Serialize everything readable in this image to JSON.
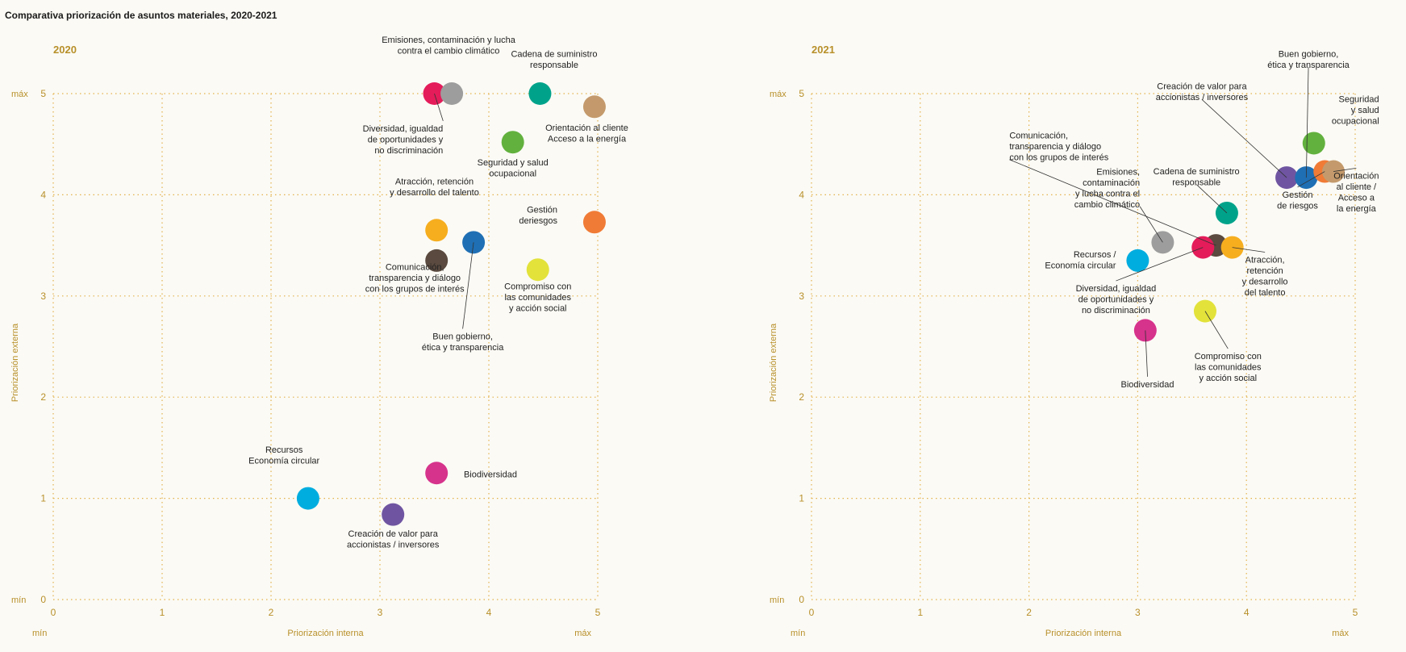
{
  "title": "Comparativa priorización de asuntos materiales, 2020-2021",
  "chart_data": [
    {
      "type": "scatter",
      "title": "2020",
      "xlabel": "Priorización interna",
      "ylabel": "Priorización externa",
      "xlim": [
        0,
        5
      ],
      "ylim": [
        0,
        5
      ],
      "x_ticks": [
        "0",
        "1",
        "2",
        "3",
        "4",
        "5"
      ],
      "y_ticks": [
        "0",
        "1",
        "2",
        "3",
        "4",
        "5"
      ],
      "x_min_label": "mín",
      "x_max_label": "máx",
      "y_min_label": "mín",
      "y_max_label": "máx",
      "grid": true,
      "points": [
        {
          "x": 3.5,
          "y": 5.0,
          "color": "#e41c5a",
          "label": [
            "Diversidad, igualdad",
            "de oportunidades y",
            "no discriminación"
          ],
          "label_anchor": "end",
          "label_dx": 0.08,
          "label_dy": -0.45,
          "leader": true
        },
        {
          "x": 3.66,
          "y": 5.0,
          "color": "#9d9d9d",
          "label": [
            "Emisiones, contaminación y lucha",
            "contra el cambio climático"
          ],
          "label_anchor": "middle",
          "label_dx": -0.03,
          "label_dy": 0.48,
          "leader": false
        },
        {
          "x": 4.47,
          "y": 5.0,
          "color": "#00a38a",
          "label": [
            "Cadena de suministro",
            "responsable"
          ],
          "label_anchor": "middle",
          "label_dx": 0.13,
          "label_dy": 0.34,
          "leader": false
        },
        {
          "x": 4.97,
          "y": 4.87,
          "color": "#c49a6c",
          "label": [
            "Orientación al cliente",
            "Acceso a la energía"
          ],
          "label_anchor": "middle",
          "label_dx": -0.07,
          "label_dy": -0.26,
          "leader": false
        },
        {
          "x": 4.22,
          "y": 4.52,
          "color": "#62b13e",
          "label": [
            "Seguridad y salud",
            "ocupacional"
          ],
          "label_anchor": "middle",
          "label_dx": 0.0,
          "label_dy": -0.25,
          "leader": false
        },
        {
          "x": 3.52,
          "y": 3.65,
          "color": "#f6ae1f",
          "label": [
            "Atracción, retención",
            "y desarrollo del talento"
          ],
          "label_anchor": "middle",
          "label_dx": -0.02,
          "label_dy": 0.43,
          "leader": false
        },
        {
          "x": 3.86,
          "y": 3.53,
          "color": "#1f6fb4",
          "label": [
            "Buen gobierno,",
            "ética y transparencia"
          ],
          "label_anchor": "middle",
          "label_dx": -0.1,
          "label_dy": -0.98,
          "leader": true
        },
        {
          "x": 3.52,
          "y": 3.35,
          "color": "#5a4a3f",
          "label": [
            "Comunicación,",
            "transparencia y diálogo",
            "con los grupos de interés"
          ],
          "label_anchor": "middle",
          "label_dx": -0.2,
          "label_dy": -0.17,
          "leader": false
        },
        {
          "x": 4.97,
          "y": 3.73,
          "color": "#f07b36",
          "label": [
            "Gestión",
            "deriesgos"
          ],
          "label_anchor": "end",
          "label_dx": -0.34,
          "label_dy": 0.07,
          "leader": false
        },
        {
          "x": 4.45,
          "y": 3.26,
          "color": "#e2e23b",
          "label": [
            "Compromiso con",
            "las comunidades",
            "y acción social"
          ],
          "label_anchor": "middle",
          "label_dx": 0.0,
          "label_dy": -0.27,
          "leader": false
        },
        {
          "x": 2.34,
          "y": 1.0,
          "color": "#00addf",
          "label": [
            "Recursos",
            "Economía circular"
          ],
          "label_anchor": "middle",
          "label_dx": -0.22,
          "label_dy": 0.43,
          "leader": false
        },
        {
          "x": 3.12,
          "y": 0.84,
          "color": "#6f55a1",
          "label": [
            "Creación de valor para",
            "accionistas / inversores"
          ],
          "label_anchor": "middle",
          "label_dx": 0.0,
          "label_dy": -0.24,
          "leader": false
        },
        {
          "x": 3.52,
          "y": 1.25,
          "color": "#d6338c",
          "label": [
            "Biodiversidad"
          ],
          "label_anchor": "start",
          "label_dx": 0.25,
          "label_dy": -0.01,
          "leader": false
        }
      ]
    },
    {
      "type": "scatter",
      "title": "2021",
      "xlabel": "Priorización interna",
      "ylabel": "Priorización externa",
      "xlim": [
        0,
        5
      ],
      "ylim": [
        0,
        5
      ],
      "x_ticks": [
        "0",
        "1",
        "2",
        "3",
        "4",
        "5"
      ],
      "y_ticks": [
        "0",
        "1",
        "2",
        "3",
        "4",
        "5"
      ],
      "x_min_label": "mín",
      "x_max_label": "máx",
      "y_min_label": "mín",
      "y_max_label": "máx",
      "grid": true,
      "points": [
        {
          "x": 4.37,
          "y": 4.17,
          "color": "#6f55a1",
          "label": [
            "Creación de valor para",
            "accionistas / inversores"
          ],
          "label_anchor": "middle",
          "label_dx": -0.78,
          "label_dy": 0.85,
          "leader": true
        },
        {
          "x": 4.55,
          "y": 4.17,
          "color": "#1f6fb4",
          "label": [
            "Buen gobierno,",
            "ética y transparencia"
          ],
          "label_anchor": "middle",
          "label_dx": 0.02,
          "label_dy": 1.17,
          "leader": true
        },
        {
          "x": 4.62,
          "y": 4.51,
          "color": "#62b13e",
          "label": [
            "Seguridad",
            "y salud",
            "ocupacional"
          ],
          "label_anchor": "end",
          "label_dx": 0.6,
          "label_dy": 0.33,
          "leader": false
        },
        {
          "x": 4.72,
          "y": 4.23,
          "color": "#f07b36",
          "label": [
            "Gestión",
            "de riesgos"
          ],
          "label_anchor": "middle",
          "label_dx": -0.25,
          "label_dy": -0.28,
          "leader": true
        },
        {
          "x": 4.8,
          "y": 4.23,
          "color": "#c49a6c",
          "label": [
            "Orientación",
            "al cliente /",
            "Acceso a",
            "la energía"
          ],
          "label_anchor": "middle",
          "label_dx": 0.21,
          "label_dy": -0.2,
          "leader": true
        },
        {
          "x": 3.82,
          "y": 3.82,
          "color": "#00a38a",
          "label": [
            "Cadena de suministro",
            "responsable"
          ],
          "label_anchor": "middle",
          "label_dx": -0.28,
          "label_dy": 0.36,
          "leader": true
        },
        {
          "x": 3.72,
          "y": 3.5,
          "color": "#5a4a3f",
          "label": [
            "Comunicación,",
            "transparencia y diálogo",
            "con los grupos de interés"
          ],
          "label_anchor": "start",
          "label_dx": -1.9,
          "label_dy": 0.98,
          "leader": true
        },
        {
          "x": 3.23,
          "y": 3.53,
          "color": "#9d9d9d",
          "label": [
            "Emisiones,",
            "contaminación",
            "y lucha contra el",
            "cambio climático"
          ],
          "label_anchor": "end",
          "label_dx": -0.21,
          "label_dy": 0.54,
          "leader": true
        },
        {
          "x": 3.6,
          "y": 3.48,
          "color": "#e41c5a",
          "label": [
            "Diversidad, igualdad",
            "de oportunidades y",
            "no discriminación"
          ],
          "label_anchor": "middle",
          "label_dx": -0.8,
          "label_dy": -0.51,
          "leader": true
        },
        {
          "x": 3.87,
          "y": 3.48,
          "color": "#f6ae1f",
          "label": [
            "Atracción,",
            "retención",
            "y desarrollo",
            "del talento"
          ],
          "label_anchor": "middle",
          "label_dx": 0.3,
          "label_dy": -0.28,
          "leader": true
        },
        {
          "x": 3.0,
          "y": 3.35,
          "color": "#00addf",
          "label": [
            "Recursos /",
            "Economía circular"
          ],
          "label_anchor": "end",
          "label_dx": -0.2,
          "label_dy": 0.01,
          "leader": false
        },
        {
          "x": 3.62,
          "y": 2.85,
          "color": "#e2e23b",
          "label": [
            "Compromiso con",
            "las comunidades",
            "y acción social"
          ],
          "label_anchor": "middle",
          "label_dx": 0.21,
          "label_dy": -0.55,
          "leader": true
        },
        {
          "x": 3.07,
          "y": 2.66,
          "color": "#d6338c",
          "label": [
            "Biodiversidad"
          ],
          "label_anchor": "middle",
          "label_dx": 0.02,
          "label_dy": -0.53,
          "leader": true
        }
      ]
    }
  ]
}
